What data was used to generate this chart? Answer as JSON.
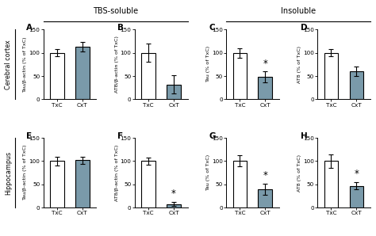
{
  "title_left": "TBS-soluble",
  "title_right": "Insoluble",
  "row_labels": [
    "Cerebral cortex",
    "Hippocampus"
  ],
  "panel_labels": [
    "A",
    "B",
    "C",
    "D",
    "E",
    "F",
    "G",
    "H"
  ],
  "ylabels": [
    "Tau/β-actin (% of TxC)",
    "ATB/β-actin (% of TxC)",
    "Tau (% of TxC)",
    "AT8 (% of TxC)",
    "Tau/β-actin (% of TxC)",
    "AT8/β-actin (% of TxC)",
    "Tau (% of TxC)",
    "AT8 (% of TxC)"
  ],
  "bar_values": [
    [
      100,
      113
    ],
    [
      100,
      32
    ],
    [
      100,
      48
    ],
    [
      100,
      60
    ],
    [
      100,
      102
    ],
    [
      100,
      8
    ],
    [
      100,
      40
    ],
    [
      100,
      47
    ]
  ],
  "bar_errors": [
    [
      8,
      10
    ],
    [
      20,
      20
    ],
    [
      10,
      12
    ],
    [
      8,
      10
    ],
    [
      10,
      8
    ],
    [
      8,
      5
    ],
    [
      12,
      12
    ],
    [
      15,
      8
    ]
  ],
  "significant": [
    false,
    false,
    true,
    false,
    false,
    true,
    true,
    true
  ],
  "bar_colors": [
    [
      "white",
      "#7a9aaa"
    ],
    [
      "white",
      "#7a9aaa"
    ],
    [
      "white",
      "#7a9aaa"
    ],
    [
      "white",
      "#7a9aaa"
    ],
    [
      "white",
      "#7a9aaa"
    ],
    [
      "white",
      "#7a9aaa"
    ],
    [
      "white",
      "#7a9aaa"
    ],
    [
      "white",
      "#7a9aaa"
    ]
  ],
  "xtick_labels": [
    "TxC",
    "CxT"
  ],
  "ylim": [
    0,
    150
  ],
  "yticks": [
    0,
    50,
    100,
    150
  ],
  "background_color": "white",
  "bar_width": 0.55,
  "bar_edge_color": "black",
  "bar_edge_width": 0.8,
  "section_title_fontsize": 7.0,
  "panel_label_fontsize": 7.5,
  "ylabel_fontsize": 4.6,
  "tick_fontsize": 5.2,
  "star_fontsize": 8.5,
  "row_label_fontsize": 5.8
}
